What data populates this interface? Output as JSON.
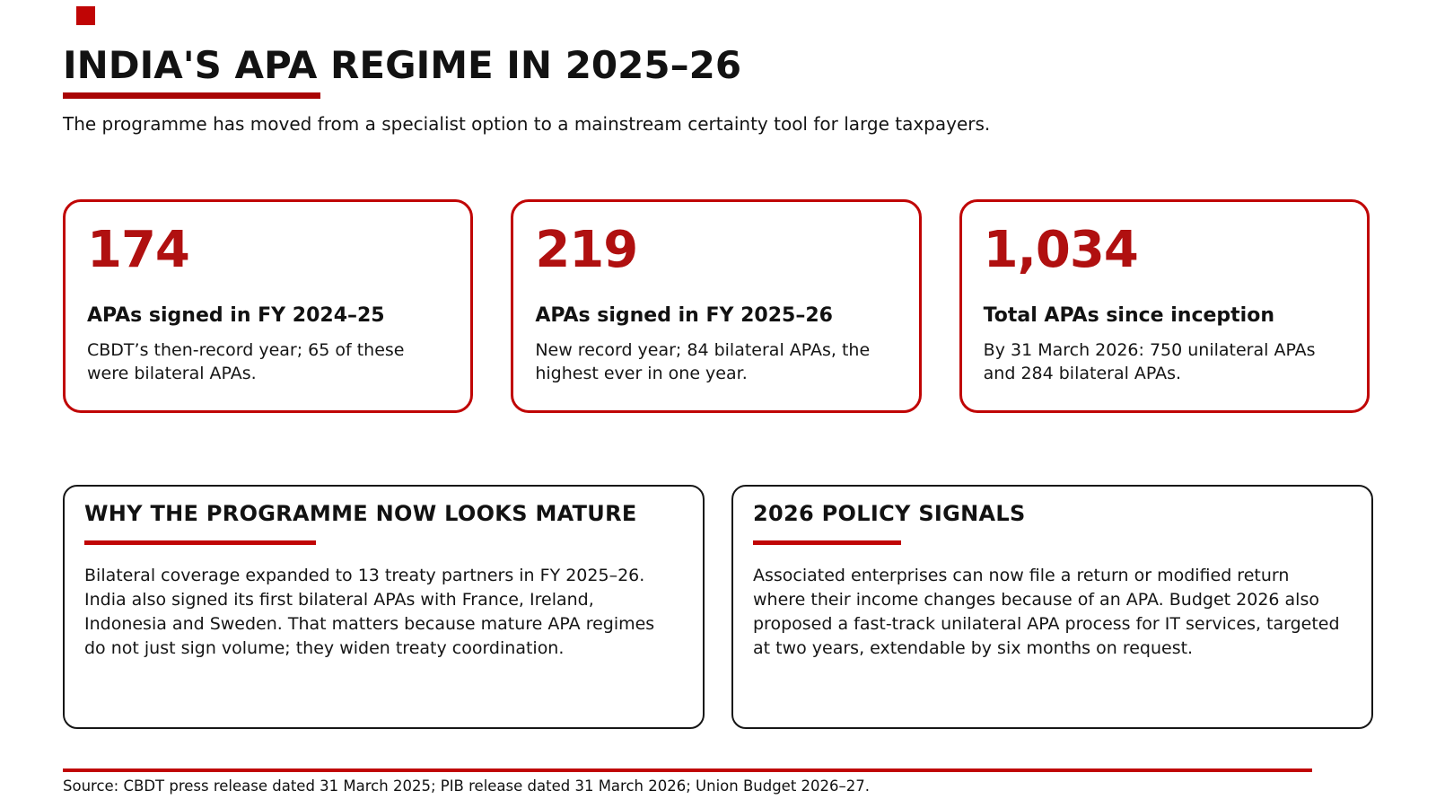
{
  "page": {
    "title": "INDIA'S APA REGIME IN 2025–26",
    "subtitle": "The programme has moved from a specialist option to a mainstream certainty tool for large taxpayers.",
    "colors": {
      "accent_red": "#c00505",
      "number_red": "#b01010",
      "text_ink": "#131313"
    }
  },
  "stat_cards": [
    {
      "value": "174",
      "label": "APAs signed in FY 2024–25",
      "description": "CBDT’s then-record year; 65 of these were bilateral APAs."
    },
    {
      "value": "219",
      "label": "APAs signed in FY 2025–26",
      "description": "New record year; 84 bilateral APAs, the highest ever in one year."
    },
    {
      "value": "1,034",
      "label": "Total APAs since inception",
      "description": "By 31 March 2026: 750 unilateral APAs and 284 bilateral APAs."
    }
  ],
  "info_cards": [
    {
      "heading": "WHY THE PROGRAMME NOW LOOKS MATURE",
      "body": "Bilateral coverage expanded to 13 treaty partners in FY 2025–26. India also signed its first bilateral APAs with France, Ireland, Indonesia and Sweden. That matters because mature APA regimes do not just sign volume; they widen treaty coordination."
    },
    {
      "heading": "2026 POLICY SIGNALS",
      "body": "Associated enterprises can now file a return or modified return where their income changes because of an APA. Budget 2026 also proposed a fast-track unilateral APA process for IT services, targeted at two years, extendable by six months on request."
    }
  ],
  "footer": {
    "source": "Source: CBDT press release dated 31 March 2025; PIB release dated 31 March 2026; Union Budget 2026–27."
  }
}
